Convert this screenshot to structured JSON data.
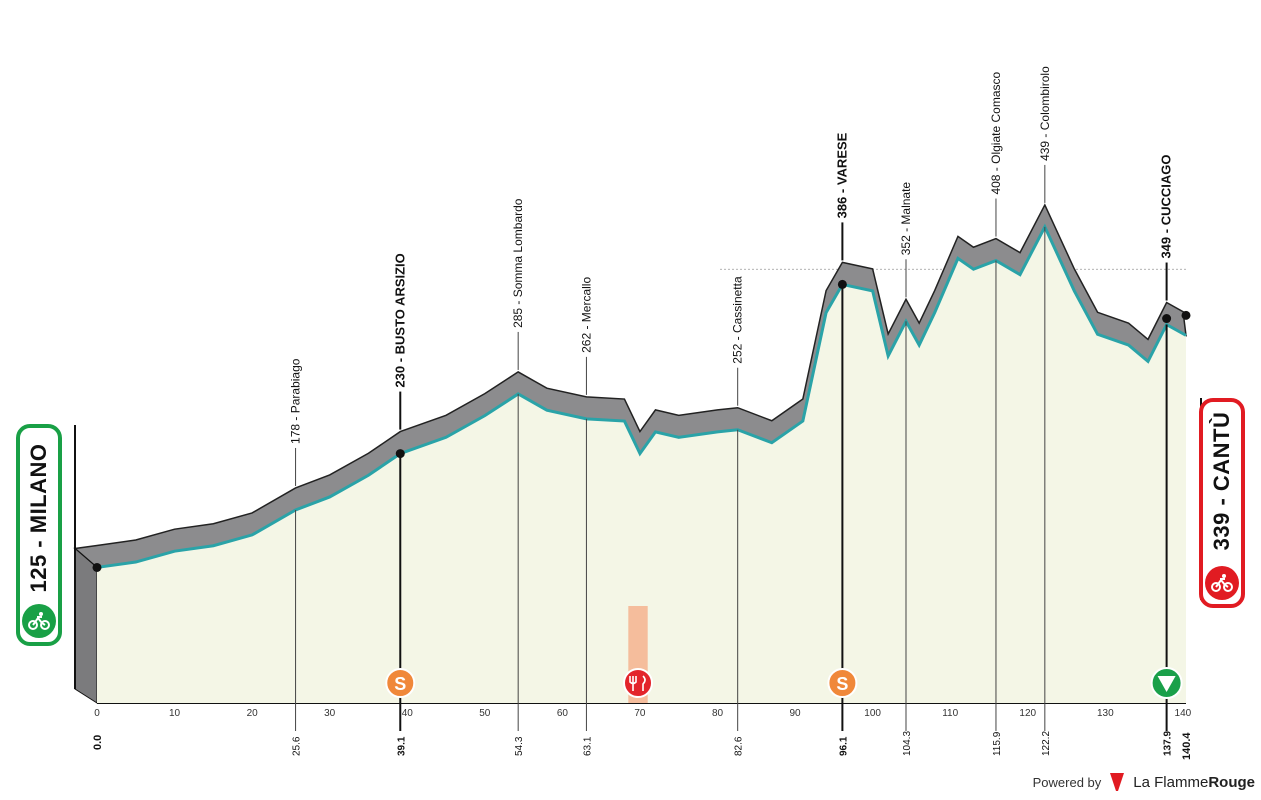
{
  "start": {
    "elevation": "125",
    "name": "MILANO",
    "label": "125 - MILANO",
    "icon": "cyclist-icon",
    "color": "#19a046"
  },
  "finish": {
    "elevation": "339",
    "name": "CANTÙ",
    "label": "339 - CANTÙ",
    "icon": "cyclist-mountain-icon",
    "color": "#e11b22"
  },
  "distance_axis": {
    "ticks": [
      "0",
      "10",
      "20",
      "30",
      "40",
      "50",
      "60",
      "70",
      "80",
      "90",
      "100",
      "110",
      "120",
      "130",
      "140"
    ]
  },
  "elevation_axis": {
    "ticks": [
      "200",
      "400"
    ]
  },
  "places": [
    {
      "km": 25.6,
      "km_label": "25.6",
      "label": "178 - Parabiago",
      "bold": false
    },
    {
      "km": 39.1,
      "km_label": "39.1",
      "label": "230 - BUSTO ARSIZIO",
      "bold": true,
      "marker": "sprint"
    },
    {
      "km": 54.3,
      "km_label": "54.3",
      "label": "285 - Somma Lombardo",
      "bold": false
    },
    {
      "km": 63.1,
      "km_label": "63.1",
      "label": "262 - Mercallo",
      "bold": false
    },
    {
      "km": 82.6,
      "km_label": "82.6",
      "label": "252 - Cassinetta",
      "bold": false
    },
    {
      "km": 96.1,
      "km_label": "96.1",
      "label": "386 - VARESE",
      "bold": true,
      "marker": "sprint"
    },
    {
      "km": 104.3,
      "km_label": "104.3",
      "label": "352 - Malnate",
      "bold": false
    },
    {
      "km": 115.9,
      "km_label": "115.9",
      "label": "408 - Olgiate Comasco",
      "bold": false
    },
    {
      "km": 122.2,
      "km_label": "122.2",
      "label": "439 - Colombirolo",
      "bold": false
    },
    {
      "km": 137.9,
      "km_label": "137.9",
      "label": "349 - CUCCIAGO",
      "bold": true,
      "marker": "last-km"
    }
  ],
  "start_km_label": "0.0",
  "finish_km_label": "140.4",
  "feed_zone": {
    "from_km": 68.5,
    "to_km": 71,
    "icon": "feed-zone-icon"
  },
  "markers": {
    "sprint_icon": "sprint-icon",
    "last_km_icon": "flamme-rouge-icon",
    "sprint_letter": "S"
  },
  "colors": {
    "profile_top": "#8c8c8e",
    "road_line": "#2aa3a8",
    "ground": "#f4f6e6",
    "sprint": "#f0883a",
    "feed": "#f4b38e",
    "feed_icon": "#e3242b",
    "last_km": "#1aa04a"
  },
  "chart_data": {
    "type": "area",
    "title": "",
    "xlabel": "",
    "ylabel": "",
    "xlim": [
      0,
      140.4
    ],
    "ylim": [
      0,
      450
    ],
    "x": [
      0,
      5,
      10,
      15,
      20,
      25.6,
      30,
      35,
      39.1,
      45,
      50,
      54.3,
      58,
      63.1,
      68,
      70,
      72,
      75,
      80,
      82.6,
      87,
      91,
      94,
      96.1,
      100,
      102,
      104.3,
      106,
      108,
      111,
      113,
      115.9,
      119,
      122.2,
      126,
      129,
      133,
      135.5,
      137.9,
      140.4
    ],
    "values": [
      125,
      130,
      140,
      145,
      155,
      178,
      190,
      210,
      230,
      245,
      265,
      285,
      270,
      262,
      260,
      230,
      250,
      245,
      250,
      252,
      240,
      260,
      360,
      386,
      380,
      320,
      352,
      330,
      360,
      410,
      400,
      408,
      395,
      439,
      380,
      340,
      330,
      315,
      349,
      339
    ]
  }
}
